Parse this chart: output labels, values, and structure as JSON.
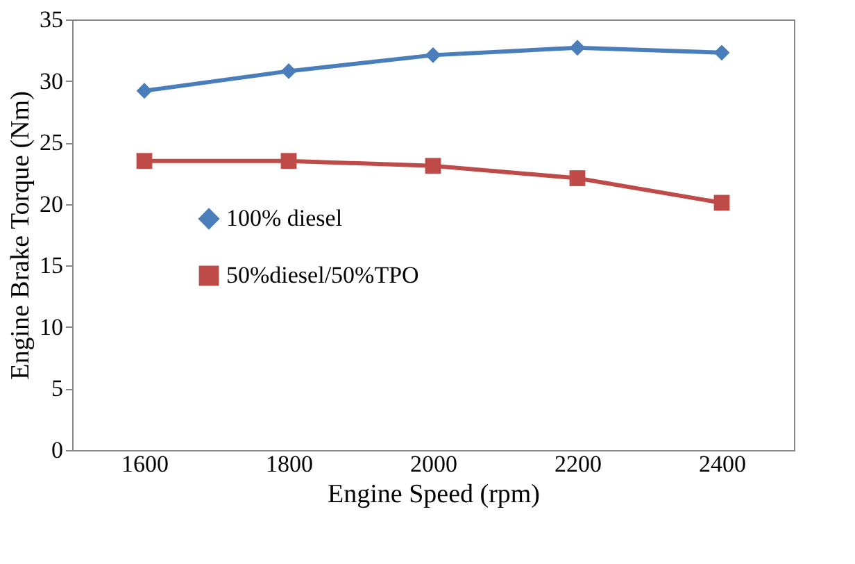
{
  "chart_data": {
    "type": "line",
    "xlabel": "Engine Speed (rpm)",
    "ylabel": "Engine Brake Torque (Nm)",
    "categories": [
      "1600",
      "1800",
      "2000",
      "2200",
      "2400"
    ],
    "ylim": [
      0,
      35
    ],
    "yticks": [
      0,
      5,
      10,
      15,
      20,
      25,
      30,
      35
    ],
    "grid": false,
    "legend": "left",
    "series": [
      {
        "name": "100% diesel",
        "color": "#4a7ebb",
        "marker": "diamond",
        "values": [
          29.2,
          30.8,
          32.1,
          32.7,
          32.3
        ]
      },
      {
        "name": "50%diesel/50%TPO",
        "color": "#be4b48",
        "marker": "square",
        "values": [
          23.5,
          23.5,
          23.1,
          22.1,
          20.1
        ]
      }
    ]
  }
}
